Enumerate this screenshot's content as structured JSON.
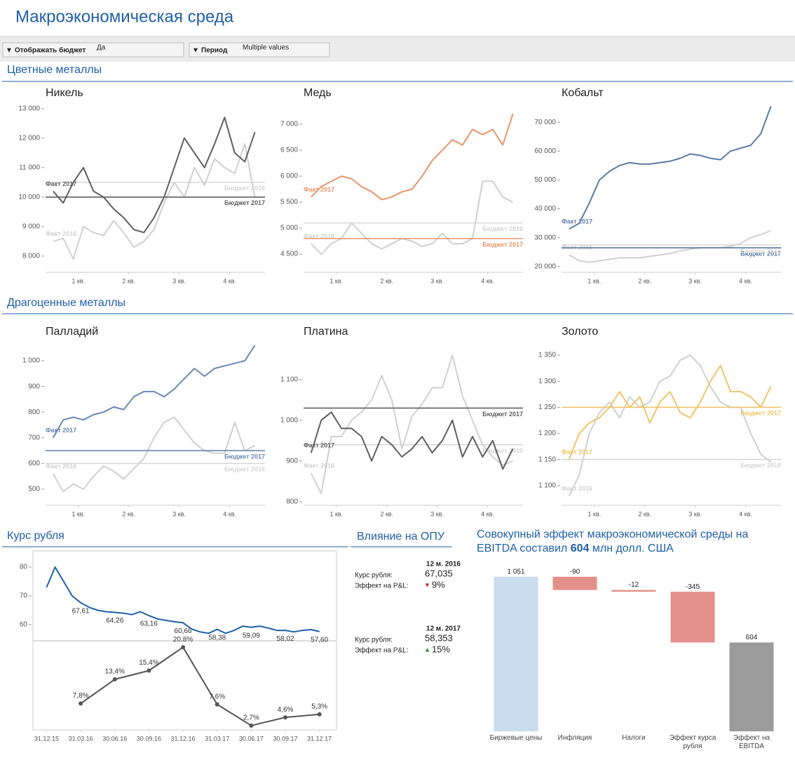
{
  "header": {
    "title": "Макроэкономическая среда"
  },
  "filters": [
    {
      "label": "Отображать бюджет",
      "value": "Да"
    },
    {
      "label": "Период",
      "value": "Multiple values"
    }
  ],
  "sections": [
    "Цветные металлы",
    "Драгоценные металлы"
  ],
  "impact": {
    "title": "Влияние на ОПУ",
    "blocks": [
      {
        "period": "12 м. 2016",
        "rate_label": "Курс рубля:",
        "rate": "67,035",
        "effect_label": "Эффект на P&L:",
        "effect": "9%",
        "direction": "down"
      },
      {
        "period": "12 м. 2017",
        "rate_label": "Курс рубля:",
        "rate": "58,353",
        "effect_label": "Эффект на P&L:",
        "effect": "15%",
        "direction": "up"
      }
    ]
  },
  "chart_data": [
    {
      "type": "line",
      "title": "Никель",
      "x": [
        0,
        0.2,
        0.4,
        0.6,
        0.8,
        1,
        1.2,
        1.4,
        1.6,
        1.8,
        2,
        2.2,
        2.4,
        2.6,
        2.8,
        3,
        3.2,
        3.4,
        3.6,
        3.8,
        4
      ],
      "xlim": [
        -0.15,
        4.2
      ],
      "xticks": [
        {
          "value": 0.5,
          "label": "1 кв."
        },
        {
          "value": 1.5,
          "label": "2 кв."
        },
        {
          "value": 2.5,
          "label": "3 кв."
        },
        {
          "value": 3.5,
          "label": "4 кв."
        }
      ],
      "ylim": [
        7450,
        13350
      ],
      "yticks": [
        {
          "value": 8000,
          "label": "8 000"
        },
        {
          "value": 9000,
          "label": "9 000"
        },
        {
          "value": 10000,
          "label": "10 000"
        },
        {
          "value": 11000,
          "label": "11 000"
        },
        {
          "value": 12000,
          "label": "12 000"
        },
        {
          "value": 13000,
          "label": "13 000"
        }
      ],
      "series": [
        {
          "name": "Факт 2017",
          "color": "#5f5f5f",
          "values": [
            10200,
            9800,
            10500,
            11000,
            10200,
            10000,
            9600,
            9300,
            8900,
            8800,
            9300,
            10000,
            11000,
            12000,
            11500,
            11000,
            11800,
            12700,
            11500,
            11200,
            12200
          ]
        },
        {
          "name": "Факт 2016",
          "color": "#d0d0d0",
          "values": [
            8500,
            8600,
            7900,
            9000,
            8800,
            8700,
            9200,
            8800,
            8300,
            8500,
            8900,
            9800,
            10500,
            10000,
            11000,
            10400,
            11300,
            11000,
            10800,
            11800,
            10000
          ]
        }
      ],
      "reference_lines": [
        {
          "name": "Бюджет 2017",
          "value": 10000,
          "color": "#5f5f5f"
        },
        {
          "name": "Бюджет 2016",
          "value": 10500,
          "color": "#d5d5d5"
        }
      ]
    },
    {
      "type": "line",
      "title": "Медь",
      "x": [
        0,
        0.2,
        0.4,
        0.6,
        0.8,
        1,
        1.2,
        1.4,
        1.6,
        1.8,
        2,
        2.2,
        2.4,
        2.6,
        2.8,
        3,
        3.2,
        3.4,
        3.6,
        3.8,
        4
      ],
      "xlim": [
        -0.15,
        4.2
      ],
      "xticks": [
        {
          "value": 0.5,
          "label": "1 кв."
        },
        {
          "value": 1.5,
          "label": "2 кв."
        },
        {
          "value": 2.5,
          "label": "3 кв."
        },
        {
          "value": 3.5,
          "label": "4 кв."
        }
      ],
      "ylim": [
        4150,
        7500
      ],
      "yticks": [
        {
          "value": 4500,
          "label": "4 500"
        },
        {
          "value": 5000,
          "label": "5 000"
        },
        {
          "value": 5500,
          "label": "5 500"
        },
        {
          "value": 6000,
          "label": "6 000"
        },
        {
          "value": 6500,
          "label": "6 500"
        },
        {
          "value": 7000,
          "label": "7 000"
        }
      ],
      "series": [
        {
          "name": "Факт 2017",
          "color": "#e8956a",
          "values": [
            5600,
            5800,
            5900,
            6000,
            5950,
            5800,
            5700,
            5550,
            5600,
            5700,
            5750,
            6000,
            6300,
            6500,
            6700,
            6600,
            6900,
            6800,
            6900,
            6600,
            7200
          ]
        },
        {
          "name": "Факт 2016",
          "color": "#d0d0d0",
          "values": [
            4700,
            4500,
            4700,
            4800,
            5100,
            4900,
            4700,
            4600,
            4700,
            4800,
            4750,
            4650,
            4700,
            4900,
            4700,
            4700,
            4800,
            5900,
            5900,
            5600,
            5500
          ]
        }
      ],
      "reference_lines": [
        {
          "name": "Бюджет 2017",
          "value": 4800,
          "color": "#e8956a"
        },
        {
          "name": "Бюджет 2016",
          "value": 5100,
          "color": "#d5d5d5"
        }
      ]
    },
    {
      "type": "line",
      "title": "Кобальт",
      "x": [
        0,
        0.2,
        0.4,
        0.6,
        0.8,
        1,
        1.2,
        1.4,
        1.6,
        1.8,
        2,
        2.2,
        2.4,
        2.6,
        2.8,
        3,
        3.2,
        3.4,
        3.6,
        3.8,
        4
      ],
      "xlim": [
        -0.15,
        4.2
      ],
      "xticks": [
        {
          "value": 0.5,
          "label": "1 кв."
        },
        {
          "value": 1.5,
          "label": "2 кв."
        },
        {
          "value": 2.5,
          "label": "3 кв."
        },
        {
          "value": 3.5,
          "label": "4 кв."
        }
      ],
      "ylim": [
        18000,
        78300
      ],
      "yticks": [
        {
          "value": 20000,
          "label": "20 000"
        },
        {
          "value": 30000,
          "label": "30 000"
        },
        {
          "value": 40000,
          "label": "40 000"
        },
        {
          "value": 50000,
          "label": "50 000"
        },
        {
          "value": 60000,
          "label": "60 000"
        },
        {
          "value": 70000,
          "label": "70 000"
        }
      ],
      "series": [
        {
          "name": "Факт 2017",
          "color": "#5b7ba6",
          "values": [
            33000,
            35000,
            42000,
            50000,
            53000,
            55000,
            56000,
            55500,
            55500,
            56000,
            56500,
            57500,
            59000,
            58500,
            57500,
            57000,
            60000,
            61000,
            62000,
            66000,
            75500
          ]
        },
        {
          "name": "Факт 2016",
          "color": "#d0d0d0",
          "values": [
            24000,
            22000,
            21500,
            22000,
            22500,
            23000,
            23000,
            23000,
            23500,
            24000,
            24500,
            25500,
            26000,
            26500,
            26500,
            26500,
            27000,
            28000,
            30000,
            31000,
            32500
          ]
        }
      ],
      "reference_lines": [
        {
          "name": "Бюджет 2017",
          "value": 26500,
          "color": "#5b7ba6"
        },
        {
          "name": "Бюджет 2016",
          "value": 27500,
          "color": "#d5d5d5"
        }
      ]
    },
    {
      "type": "line",
      "title": "Палладий",
      "x": [
        0,
        0.2,
        0.4,
        0.6,
        0.8,
        1,
        1.2,
        1.4,
        1.6,
        1.8,
        2,
        2.2,
        2.4,
        2.6,
        2.8,
        3,
        3.2,
        3.4,
        3.6,
        3.8,
        4
      ],
      "xlim": [
        -0.15,
        4.2
      ],
      "xticks": [
        {
          "value": 0.5,
          "label": "1 кв."
        },
        {
          "value": 1.5,
          "label": "2 кв."
        },
        {
          "value": 2.5,
          "label": "3 кв."
        },
        {
          "value": 3.5,
          "label": "4 кв."
        }
      ],
      "ylim": [
        437,
        1093
      ],
      "yticks": [
        500,
        600,
        700,
        800,
        900,
        {
          "value": 1000,
          "label": "1 000"
        }
      ],
      "series": [
        {
          "name": "Факт 2017",
          "color": "#6a88b5",
          "values": [
            700,
            770,
            780,
            770,
            790,
            800,
            820,
            810,
            860,
            880,
            880,
            860,
            890,
            930,
            970,
            940,
            970,
            980,
            990,
            1000,
            1060
          ]
        },
        {
          "name": "Факт 2016",
          "color": "#d0d0d0",
          "values": [
            560,
            490,
            520,
            500,
            550,
            590,
            570,
            540,
            580,
            620,
            700,
            760,
            780,
            730,
            680,
            650,
            640,
            640,
            760,
            650,
            670
          ]
        }
      ],
      "reference_lines": [
        {
          "name": "Бюджет 2017",
          "value": 650,
          "color": "#6a88b5"
        },
        {
          "name": "Бюджет 2016",
          "value": 600,
          "color": "#d5d5d5"
        }
      ]
    },
    {
      "type": "line",
      "title": "Платина",
      "x": [
        0,
        0.2,
        0.4,
        0.6,
        0.8,
        1,
        1.2,
        1.4,
        1.6,
        1.8,
        2,
        2.2,
        2.4,
        2.6,
        2.8,
        3,
        3.2,
        3.4,
        3.6,
        3.8,
        4
      ],
      "xlim": [
        -0.15,
        4.2
      ],
      "xticks": [
        {
          "value": 0.5,
          "label": "1 кв."
        },
        {
          "value": 1.5,
          "label": "2 кв."
        },
        {
          "value": 2.5,
          "label": "3 кв."
        },
        {
          "value": 3.5,
          "label": "4 кв."
        }
      ],
      "ylim": [
        791,
        1205
      ],
      "yticks": [
        800,
        900,
        {
          "value": 1000,
          "label": "1 000"
        },
        {
          "value": 1100,
          "label": "1 100"
        }
      ],
      "series": [
        {
          "name": "Факт 2017",
          "color": "#5f5f5f",
          "values": [
            920,
            1000,
            1020,
            980,
            980,
            960,
            900,
            960,
            940,
            910,
            930,
            960,
            920,
            950,
            1000,
            910,
            960,
            910,
            950,
            880,
            930
          ]
        },
        {
          "name": "Факт 2016",
          "color": "#d0d0d0",
          "values": [
            870,
            820,
            960,
            960,
            1000,
            1020,
            1050,
            1110,
            1050,
            930,
            1010,
            1040,
            1080,
            1080,
            1160,
            1060,
            1000,
            940,
            910,
            890,
            900
          ]
        }
      ],
      "reference_lines": [
        {
          "name": "Бюджет 2017",
          "value": 1030,
          "color": "#5f5f5f"
        },
        {
          "name": "Бюджет 2016",
          "value": 940,
          "color": "#d5d5d5"
        }
      ]
    },
    {
      "type": "line",
      "title": "Золото",
      "x": [
        0,
        0.2,
        0.4,
        0.6,
        0.8,
        1,
        1.2,
        1.4,
        1.6,
        1.8,
        2,
        2.2,
        2.4,
        2.6,
        2.8,
        3,
        3.2,
        3.4,
        3.6,
        3.8,
        4
      ],
      "xlim": [
        -0.15,
        4.2
      ],
      "xticks": [
        {
          "value": 0.5,
          "label": "1 кв."
        },
        {
          "value": 1.5,
          "label": "2 кв."
        },
        {
          "value": 2.5,
          "label": "3 кв."
        },
        {
          "value": 3.5,
          "label": "4 кв."
        }
      ],
      "ylim": [
        1062,
        1385
      ],
      "yticks": [
        {
          "value": 1100,
          "label": "1 100"
        },
        {
          "value": 1150,
          "label": "1 150"
        },
        {
          "value": 1200,
          "label": "1 200"
        },
        {
          "value": 1250,
          "label": "1 250"
        },
        {
          "value": 1300,
          "label": "1 300"
        },
        {
          "value": 1350,
          "label": "1 350"
        }
      ],
      "series": [
        {
          "name": "Факт 2017",
          "color": "#eec46a",
          "values": [
            1150,
            1200,
            1220,
            1230,
            1250,
            1280,
            1250,
            1270,
            1220,
            1260,
            1280,
            1240,
            1230,
            1260,
            1300,
            1330,
            1280,
            1280,
            1270,
            1250,
            1290
          ]
        },
        {
          "name": "Факт 2016",
          "color": "#d0d0d0",
          "values": [
            1080,
            1120,
            1200,
            1240,
            1260,
            1230,
            1270,
            1250,
            1260,
            1300,
            1310,
            1340,
            1350,
            1330,
            1290,
            1260,
            1250,
            1250,
            1200,
            1160,
            1145
          ]
        }
      ],
      "reference_lines": [
        {
          "name": "Бюджет 2017",
          "value": 1250,
          "color": "#eec46a"
        },
        {
          "name": "Бюджет 2016",
          "value": 1150,
          "color": "#d5d5d5"
        }
      ]
    },
    {
      "type": "line",
      "title": "Курс рубля",
      "x": [
        0,
        0.25,
        0.5,
        0.75,
        1,
        1.25,
        1.5,
        1.75,
        2,
        2.25,
        2.5,
        2.75,
        3,
        3.25,
        3.5,
        3.75,
        4,
        4.25,
        4.5,
        4.75,
        5,
        5.25,
        5.5,
        5.75,
        6,
        6.25,
        6.5,
        6.75,
        7,
        7.25,
        7.5,
        7.75,
        8
      ],
      "xlim": [
        -0.4,
        8.5
      ],
      "xticks": [
        {
          "value": 0,
          "label": "31.12.15"
        },
        {
          "value": 1,
          "label": "31.03.16"
        },
        {
          "value": 2,
          "label": "30.06.16"
        },
        {
          "value": 3,
          "label": "30.09.16"
        },
        {
          "value": 4,
          "label": "31.12.16"
        },
        {
          "value": 5,
          "label": "31.03.17"
        },
        {
          "value": 6,
          "label": "30.06.17"
        },
        {
          "value": 7,
          "label": "30.09.17"
        },
        {
          "value": 8,
          "label": "31.12.17"
        }
      ],
      "ylim": [
        54.4,
        85.6
      ],
      "yticks": [
        60,
        70,
        80
      ],
      "series": [
        {
          "color": "#1f5fa8",
          "values": [
            73,
            80,
            75,
            70,
            67.61,
            66,
            65,
            64.5,
            64.26,
            64,
            63.5,
            64.5,
            63.16,
            62,
            61.5,
            61,
            60.66,
            58.5,
            57.5,
            57,
            58.38,
            57,
            58,
            59.5,
            59.09,
            59.5,
            58.8,
            58,
            58.02,
            57.5,
            58,
            58.3,
            57.6
          ],
          "value_labels": [
            null,
            null,
            null,
            null,
            "67,61",
            null,
            null,
            null,
            "64,26",
            null,
            null,
            null,
            "63,16",
            null,
            null,
            null,
            "60,66",
            null,
            null,
            null,
            "58,38",
            null,
            null,
            null,
            "59,09",
            null,
            null,
            null,
            "58,02",
            null,
            null,
            null,
            "57,60"
          ]
        }
      ],
      "lower": {
        "x": [
          1,
          2,
          3,
          4,
          5,
          6,
          7,
          8
        ],
        "ylim": [
          1.7,
          22.3
        ],
        "series": [
          {
            "color": "#555555",
            "values": [
              7.8,
              13.4,
              15.4,
              20.8,
              7.6,
              2.7,
              4.6,
              5.3
            ],
            "value_labels": [
              "7,8%",
              "13,4%",
              "15,4%",
              "20,8%",
              "7,6%",
              "2,7%",
              "4,6%",
              "5,3%"
            ]
          }
        ]
      }
    },
    {
      "type": "waterfall",
      "title_parts": [
        "Совокупный эффект макроэкономической среды на EBITDA составил ",
        "604",
        " млн долл. США"
      ],
      "categories": [
        "Биржевые цены",
        "Инфляция",
        "Налоги",
        "Эффект курса рубля",
        "Эффект на EBITDA"
      ],
      "values": [
        1051,
        -90,
        -12,
        -345,
        604
      ],
      "value_labels": [
        "1 051",
        "-90",
        "-12",
        "-345",
        "604"
      ],
      "measures": [
        "relative",
        "relative",
        "relative",
        "relative",
        "total"
      ],
      "colors": [
        "#c9dcee",
        "#e4908a",
        "#e4908a",
        "#e4908a",
        "#9b9b9b"
      ],
      "ylim": [
        0,
        1150
      ]
    }
  ]
}
